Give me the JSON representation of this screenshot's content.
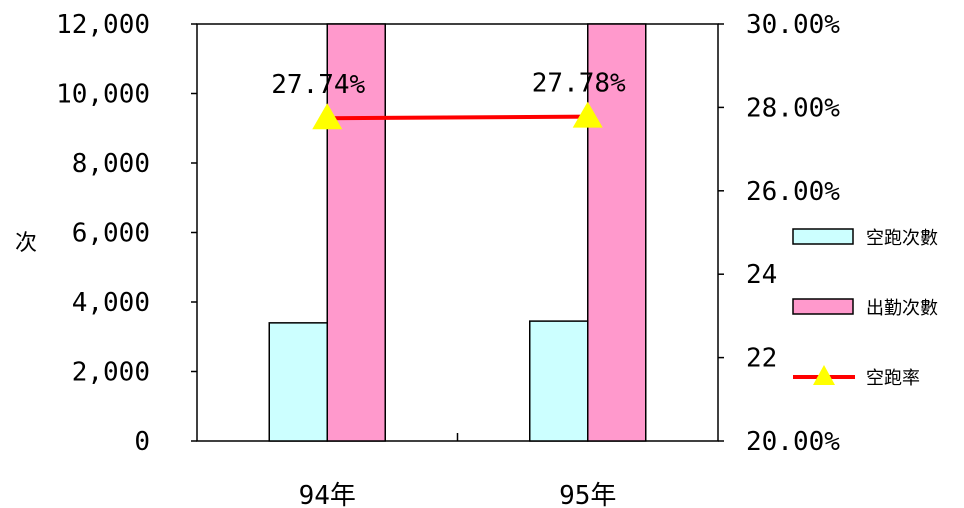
{
  "chart_data": {
    "type": "bar",
    "categories": [
      "94年",
      "95年"
    ],
    "series": [
      {
        "name": "空跑次數",
        "values": [
          3400,
          3450
        ],
        "color": "#ccffff",
        "axis": "left"
      },
      {
        "name": "出勤次數",
        "values": [
          12000,
          12000
        ],
        "color": "#ff99cc",
        "axis": "left"
      },
      {
        "name": "空跑率",
        "values": [
          27.74,
          27.78
        ],
        "color": "#ff0000",
        "marker_color": "#ffff00",
        "axis": "right",
        "kind": "line",
        "labels": [
          "27.74%",
          "27.78%"
        ]
      }
    ],
    "ylabel": "次",
    "ylim": [
      0,
      12000
    ],
    "y_ticks": [
      "0",
      "2,000",
      "4,000",
      "6,000",
      "8,000",
      "10,000",
      "12,000"
    ],
    "y2lim": [
      20,
      30
    ],
    "y2_ticks": [
      "20.00%",
      "22",
      "24",
      "26.00%",
      "28.00%",
      "30.00%"
    ],
    "legend_position": "right"
  }
}
